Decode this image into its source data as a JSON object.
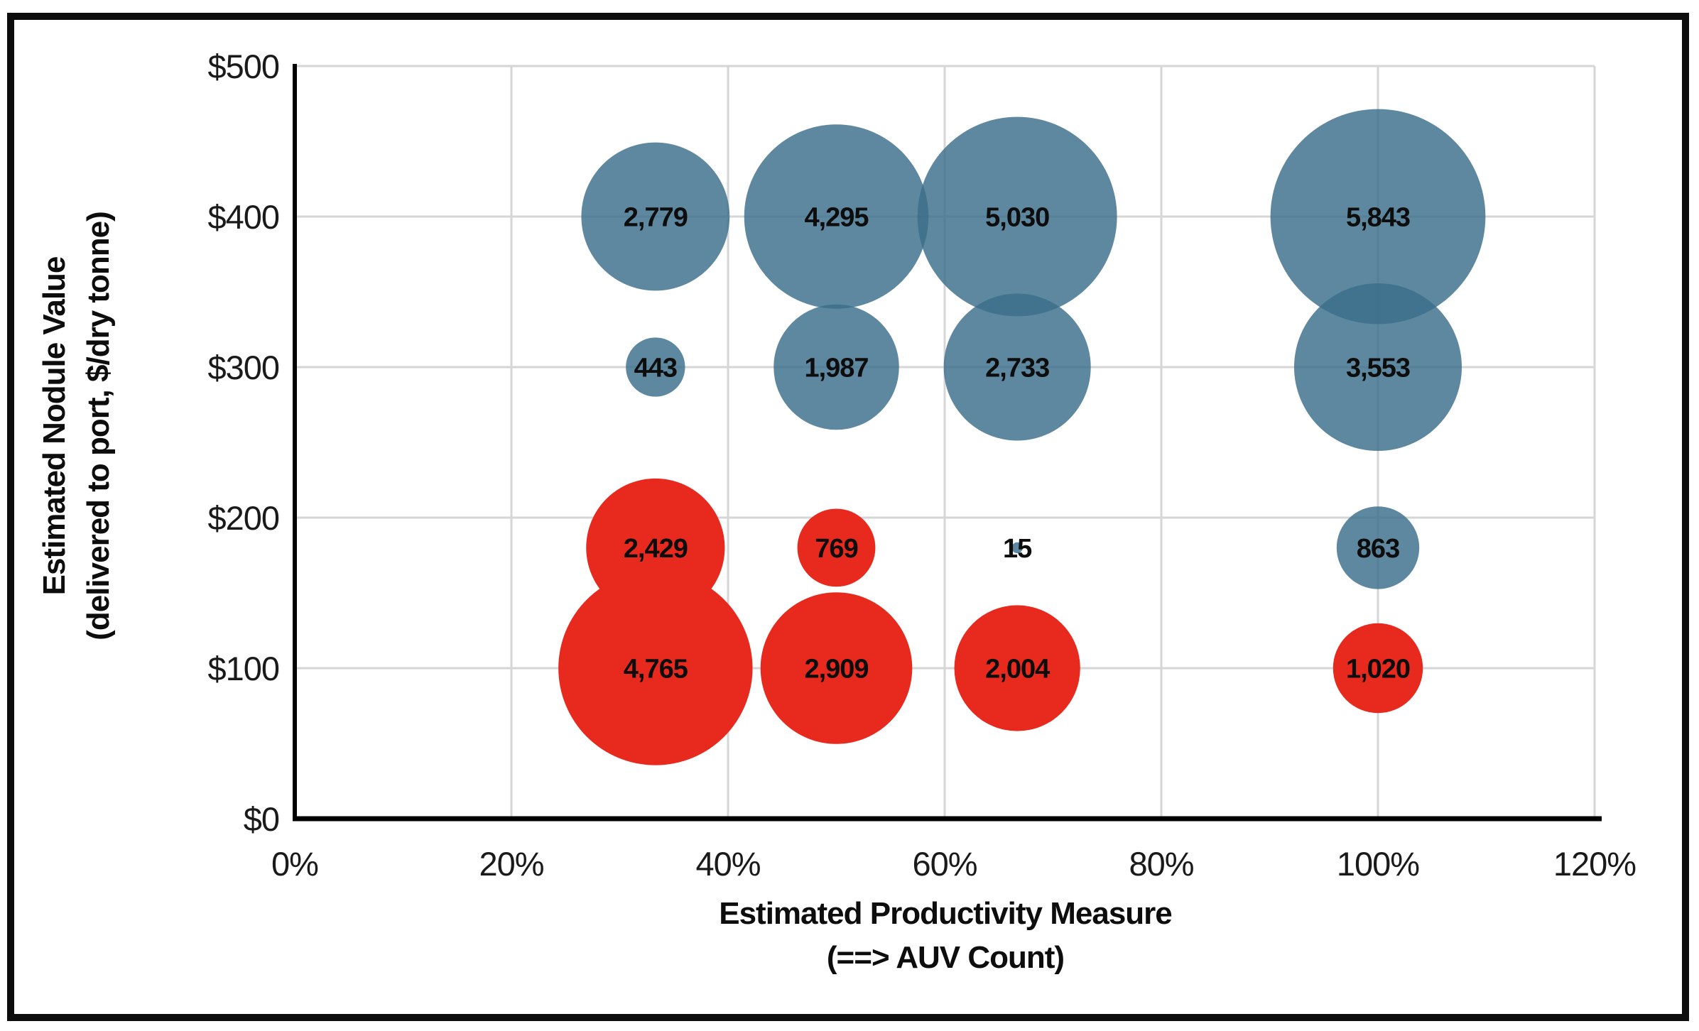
{
  "chart_data": {
    "type": "scatter",
    "subtype": "bubble",
    "title": "",
    "xlabel_line1": "Estimated Productivity Measure",
    "xlabel_line2": "(==> AUV Count)",
    "ylabel_line1": "Estimated Nodule Value",
    "ylabel_line2": "(delivered to port, $/dry tonne)",
    "xlim": [
      0,
      120
    ],
    "ylim": [
      0,
      500
    ],
    "grid": true,
    "legend": "none",
    "x_ticks": [
      {
        "value": 0,
        "label": "0%"
      },
      {
        "value": 20,
        "label": "20%"
      },
      {
        "value": 40,
        "label": "40%"
      },
      {
        "value": 60,
        "label": "60%"
      },
      {
        "value": 80,
        "label": "80%"
      },
      {
        "value": 100,
        "label": "100%"
      },
      {
        "value": 120,
        "label": "120%"
      }
    ],
    "y_ticks": [
      {
        "value": 0,
        "label": "$0"
      },
      {
        "value": 100,
        "label": "$100"
      },
      {
        "value": 200,
        "label": "$200"
      },
      {
        "value": 300,
        "label": "$300"
      },
      {
        "value": 400,
        "label": "$400"
      },
      {
        "value": 500,
        "label": "$500"
      }
    ],
    "series": [
      {
        "name": "blue-bubbles",
        "color": "#3a6e8a",
        "opacity": 0.82,
        "points": [
          {
            "x": 33.3,
            "y": 400,
            "size": 2779,
            "label": "2,779"
          },
          {
            "x": 50,
            "y": 400,
            "size": 4295,
            "label": "4,295"
          },
          {
            "x": 66.7,
            "y": 400,
            "size": 5030,
            "label": "5,030"
          },
          {
            "x": 100,
            "y": 400,
            "size": 5843,
            "label": "5,843"
          },
          {
            "x": 33.3,
            "y": 300,
            "size": 443,
            "label": "443"
          },
          {
            "x": 50,
            "y": 300,
            "size": 1987,
            "label": "1,987"
          },
          {
            "x": 66.7,
            "y": 300,
            "size": 2733,
            "label": "2,733"
          },
          {
            "x": 100,
            "y": 300,
            "size": 3553,
            "label": "3,553"
          },
          {
            "x": 66.7,
            "y": 180,
            "size": 15,
            "label": "15"
          },
          {
            "x": 100,
            "y": 180,
            "size": 863,
            "label": "863"
          }
        ]
      },
      {
        "name": "red-bubbles",
        "color": "#e8291d",
        "opacity": 1,
        "points": [
          {
            "x": 33.3,
            "y": 180,
            "size": 2429,
            "label": "2,429"
          },
          {
            "x": 50,
            "y": 180,
            "size": 769,
            "label": "769"
          },
          {
            "x": 33.3,
            "y": 100,
            "size": 4765,
            "label": "4,765"
          },
          {
            "x": 50,
            "y": 100,
            "size": 2909,
            "label": "2,909"
          },
          {
            "x": 66.7,
            "y": 100,
            "size": 2004,
            "label": "2,004"
          },
          {
            "x": 100,
            "y": 100,
            "size": 1020,
            "label": "1,020"
          }
        ]
      }
    ],
    "colors": {
      "gridline": "#d6d6d6",
      "axis_line": "#000000",
      "tick_text": "#1a1a1a",
      "data_label_text": "#0d0d0d",
      "frame": "#0d0d0d"
    }
  }
}
